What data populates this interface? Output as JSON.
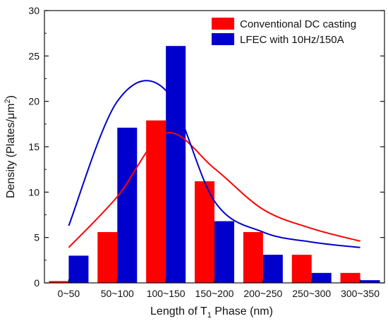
{
  "chart_data": {
    "type": "bar",
    "title": "",
    "categories": [
      "0~50",
      "50~100",
      "100~150",
      "150~200",
      "200~250",
      "250~300",
      "300~350"
    ],
    "series": [
      {
        "name": "Conventional DC casting",
        "color": "#ff0000",
        "values": [
          0.2,
          5.6,
          17.9,
          11.2,
          5.6,
          3.1,
          1.1
        ],
        "fit_curve": [
          3.9,
          9.5,
          16.5,
          12.6,
          8.1,
          6.0,
          4.6
        ]
      },
      {
        "name": "LFEC with 10Hz/150A",
        "color": "#0000cc",
        "values": [
          3.0,
          17.1,
          26.1,
          6.8,
          3.1,
          1.1,
          0.3
        ],
        "fit_curve": [
          6.3,
          20.0,
          21.2,
          9.0,
          5.6,
          4.5,
          3.9
        ]
      }
    ],
    "xlabel": {
      "prefix": "Length of  T",
      "sub": "1",
      "suffix": " Phase (nm)"
    },
    "ylabel": {
      "prefix": "Density (Plates/μm",
      "sup": "2",
      "suffix": ")"
    },
    "ylim": [
      0,
      30
    ],
    "yticks": [
      0,
      5,
      10,
      15,
      20,
      25,
      30
    ],
    "grid": false,
    "legend_position": "top-right"
  }
}
